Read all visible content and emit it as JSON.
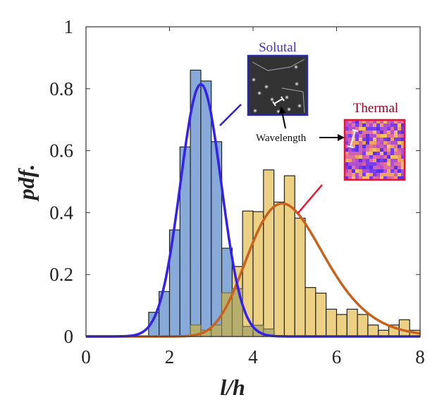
{
  "chart_data": {
    "type": "bar",
    "title": "",
    "xlabel": "l/h",
    "ylabel": "pdf.",
    "xlim": [
      0,
      8
    ],
    "ylim": [
      0,
      1
    ],
    "xticks": [
      "0",
      "2",
      "4",
      "6",
      "8"
    ],
    "yticks": [
      "0",
      "0.2",
      "0.4",
      "0.6",
      "0.8",
      "1"
    ],
    "grid": false,
    "bin_width": 0.25,
    "series": [
      {
        "name": "Solutal",
        "kind": "histogram",
        "color": "#88aad8",
        "bin_starts": [
          1.5,
          1.75,
          2.0,
          2.25,
          2.5,
          2.75,
          3.0,
          3.25,
          3.5,
          3.75,
          4.0,
          4.25
        ],
        "values": [
          0.078,
          0.145,
          0.344,
          0.612,
          0.86,
          0.825,
          0.629,
          0.285,
          0.154,
          0.032,
          0.036,
          0.024
        ]
      },
      {
        "name": "Thermal",
        "kind": "histogram",
        "color": "#ecd084",
        "bin_starts": [
          2.5,
          2.75,
          3.0,
          3.25,
          3.5,
          3.75,
          4.0,
          4.25,
          4.5,
          4.75,
          5.0,
          5.25,
          5.5,
          5.75,
          6.0,
          6.25,
          6.5,
          6.75,
          7.0,
          7.25,
          7.5,
          7.75
        ],
        "values": [
          0.037,
          0.02,
          0.037,
          0.141,
          0.226,
          0.405,
          0.403,
          0.538,
          0.434,
          0.519,
          0.382,
          0.158,
          0.14,
          0.088,
          0.071,
          0.088,
          0.071,
          0.037,
          0.02,
          0.037,
          0.054,
          0.02
        ]
      }
    ],
    "fits": [
      {
        "series": "Solutal",
        "distribution": "normal",
        "mean": 2.75,
        "std": 0.49,
        "color": "#3322ee"
      },
      {
        "series": "Thermal",
        "distribution": "lognormal",
        "mu": 1.585,
        "sigma": 0.194,
        "color": "#c8621c"
      }
    ],
    "overlap_color": "#b5ae6e",
    "annotations": {
      "solutal_label": "Solutal",
      "solutal_color": "#3322bb",
      "thermal_label": "Thermal",
      "thermal_color": "#990022",
      "wavelength_label": "Wavelength"
    }
  }
}
